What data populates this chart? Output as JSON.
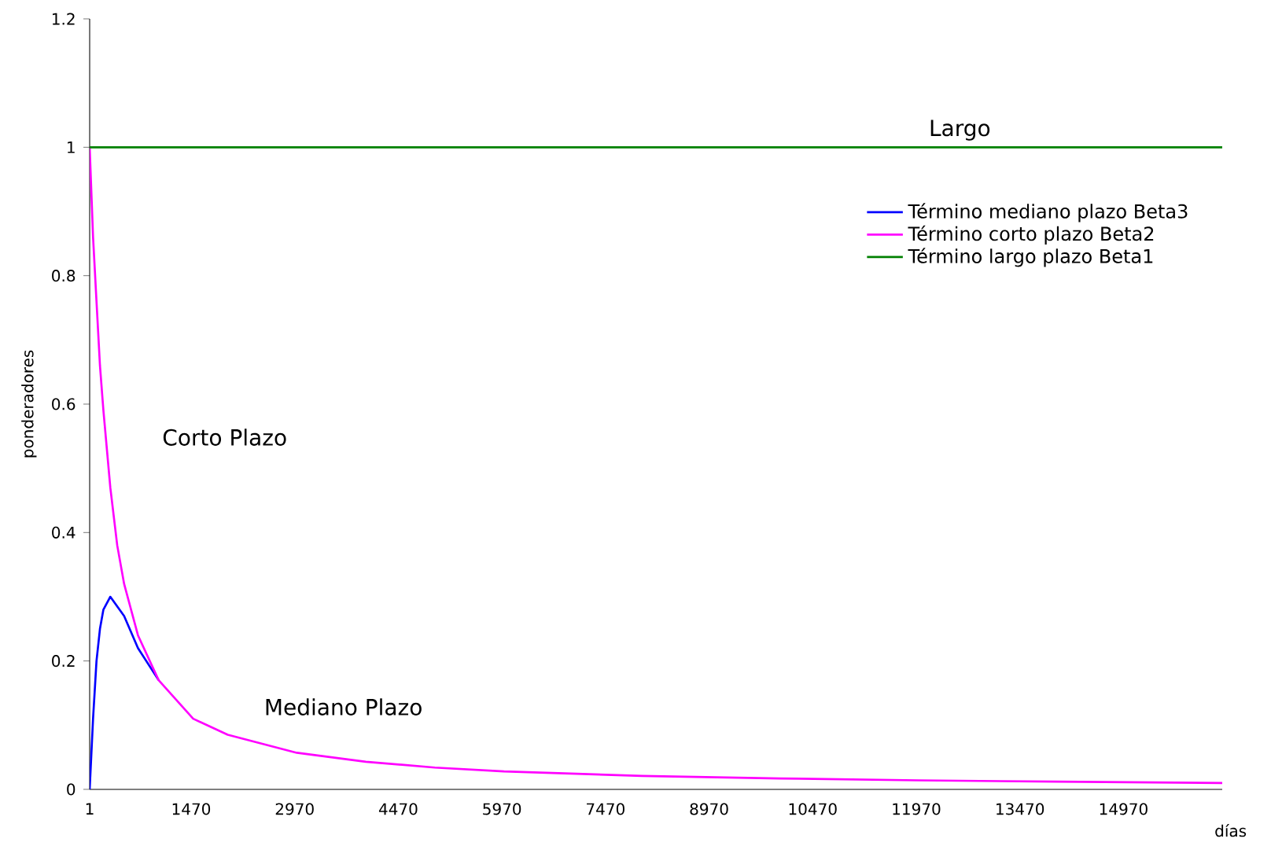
{
  "chart_data": {
    "type": "line",
    "xlabel": "días",
    "ylabel": "ponderadores",
    "x": [
      1,
      50,
      100,
      150,
      200,
      300,
      400,
      500,
      700,
      1000,
      1500,
      2000,
      3000,
      4000,
      5000,
      6000,
      8000,
      10000,
      12000,
      14000,
      16400
    ],
    "series": [
      {
        "name": "Término mediano plazo Beta3",
        "color": "#0000ff",
        "values": [
          0,
          0.11,
          0.2,
          0.25,
          0.28,
          0.3,
          0.285,
          0.27,
          0.22,
          0.17,
          null,
          null,
          null,
          null,
          null,
          null,
          null,
          null,
          null,
          null,
          null
        ]
      },
      {
        "name": "Término corto plazo Beta2",
        "color": "#ff00ff",
        "values": [
          1,
          0.86,
          0.76,
          0.66,
          0.59,
          0.47,
          0.38,
          0.32,
          0.24,
          0.17,
          0.11,
          0.085,
          0.057,
          0.043,
          0.034,
          0.028,
          0.021,
          0.017,
          0.014,
          0.012,
          0.01
        ]
      },
      {
        "name": "Término largo plazo Beta1",
        "color": "#008000",
        "values": [
          1,
          1,
          1,
          1,
          1,
          1,
          1,
          1,
          1,
          1,
          1,
          1,
          1,
          1,
          1,
          1,
          1,
          1,
          1,
          1,
          1
        ]
      }
    ],
    "xlim": [
      1,
      16400
    ],
    "xticks": [
      1,
      1470,
      2970,
      4470,
      5970,
      7470,
      8970,
      10470,
      11970,
      13470,
      14970
    ],
    "ylim": [
      0,
      1.2
    ],
    "yticks": [
      0,
      0.2,
      0.4,
      0.6,
      0.8,
      1,
      1.2
    ],
    "annotations": [
      {
        "text": "Largo",
        "x": 12600,
        "y": 1
      },
      "Corto Plazo",
      "Mediano Plazo"
    ],
    "legend": "right",
    "grid": false,
    "marker": "none",
    "line_style": "solid"
  }
}
